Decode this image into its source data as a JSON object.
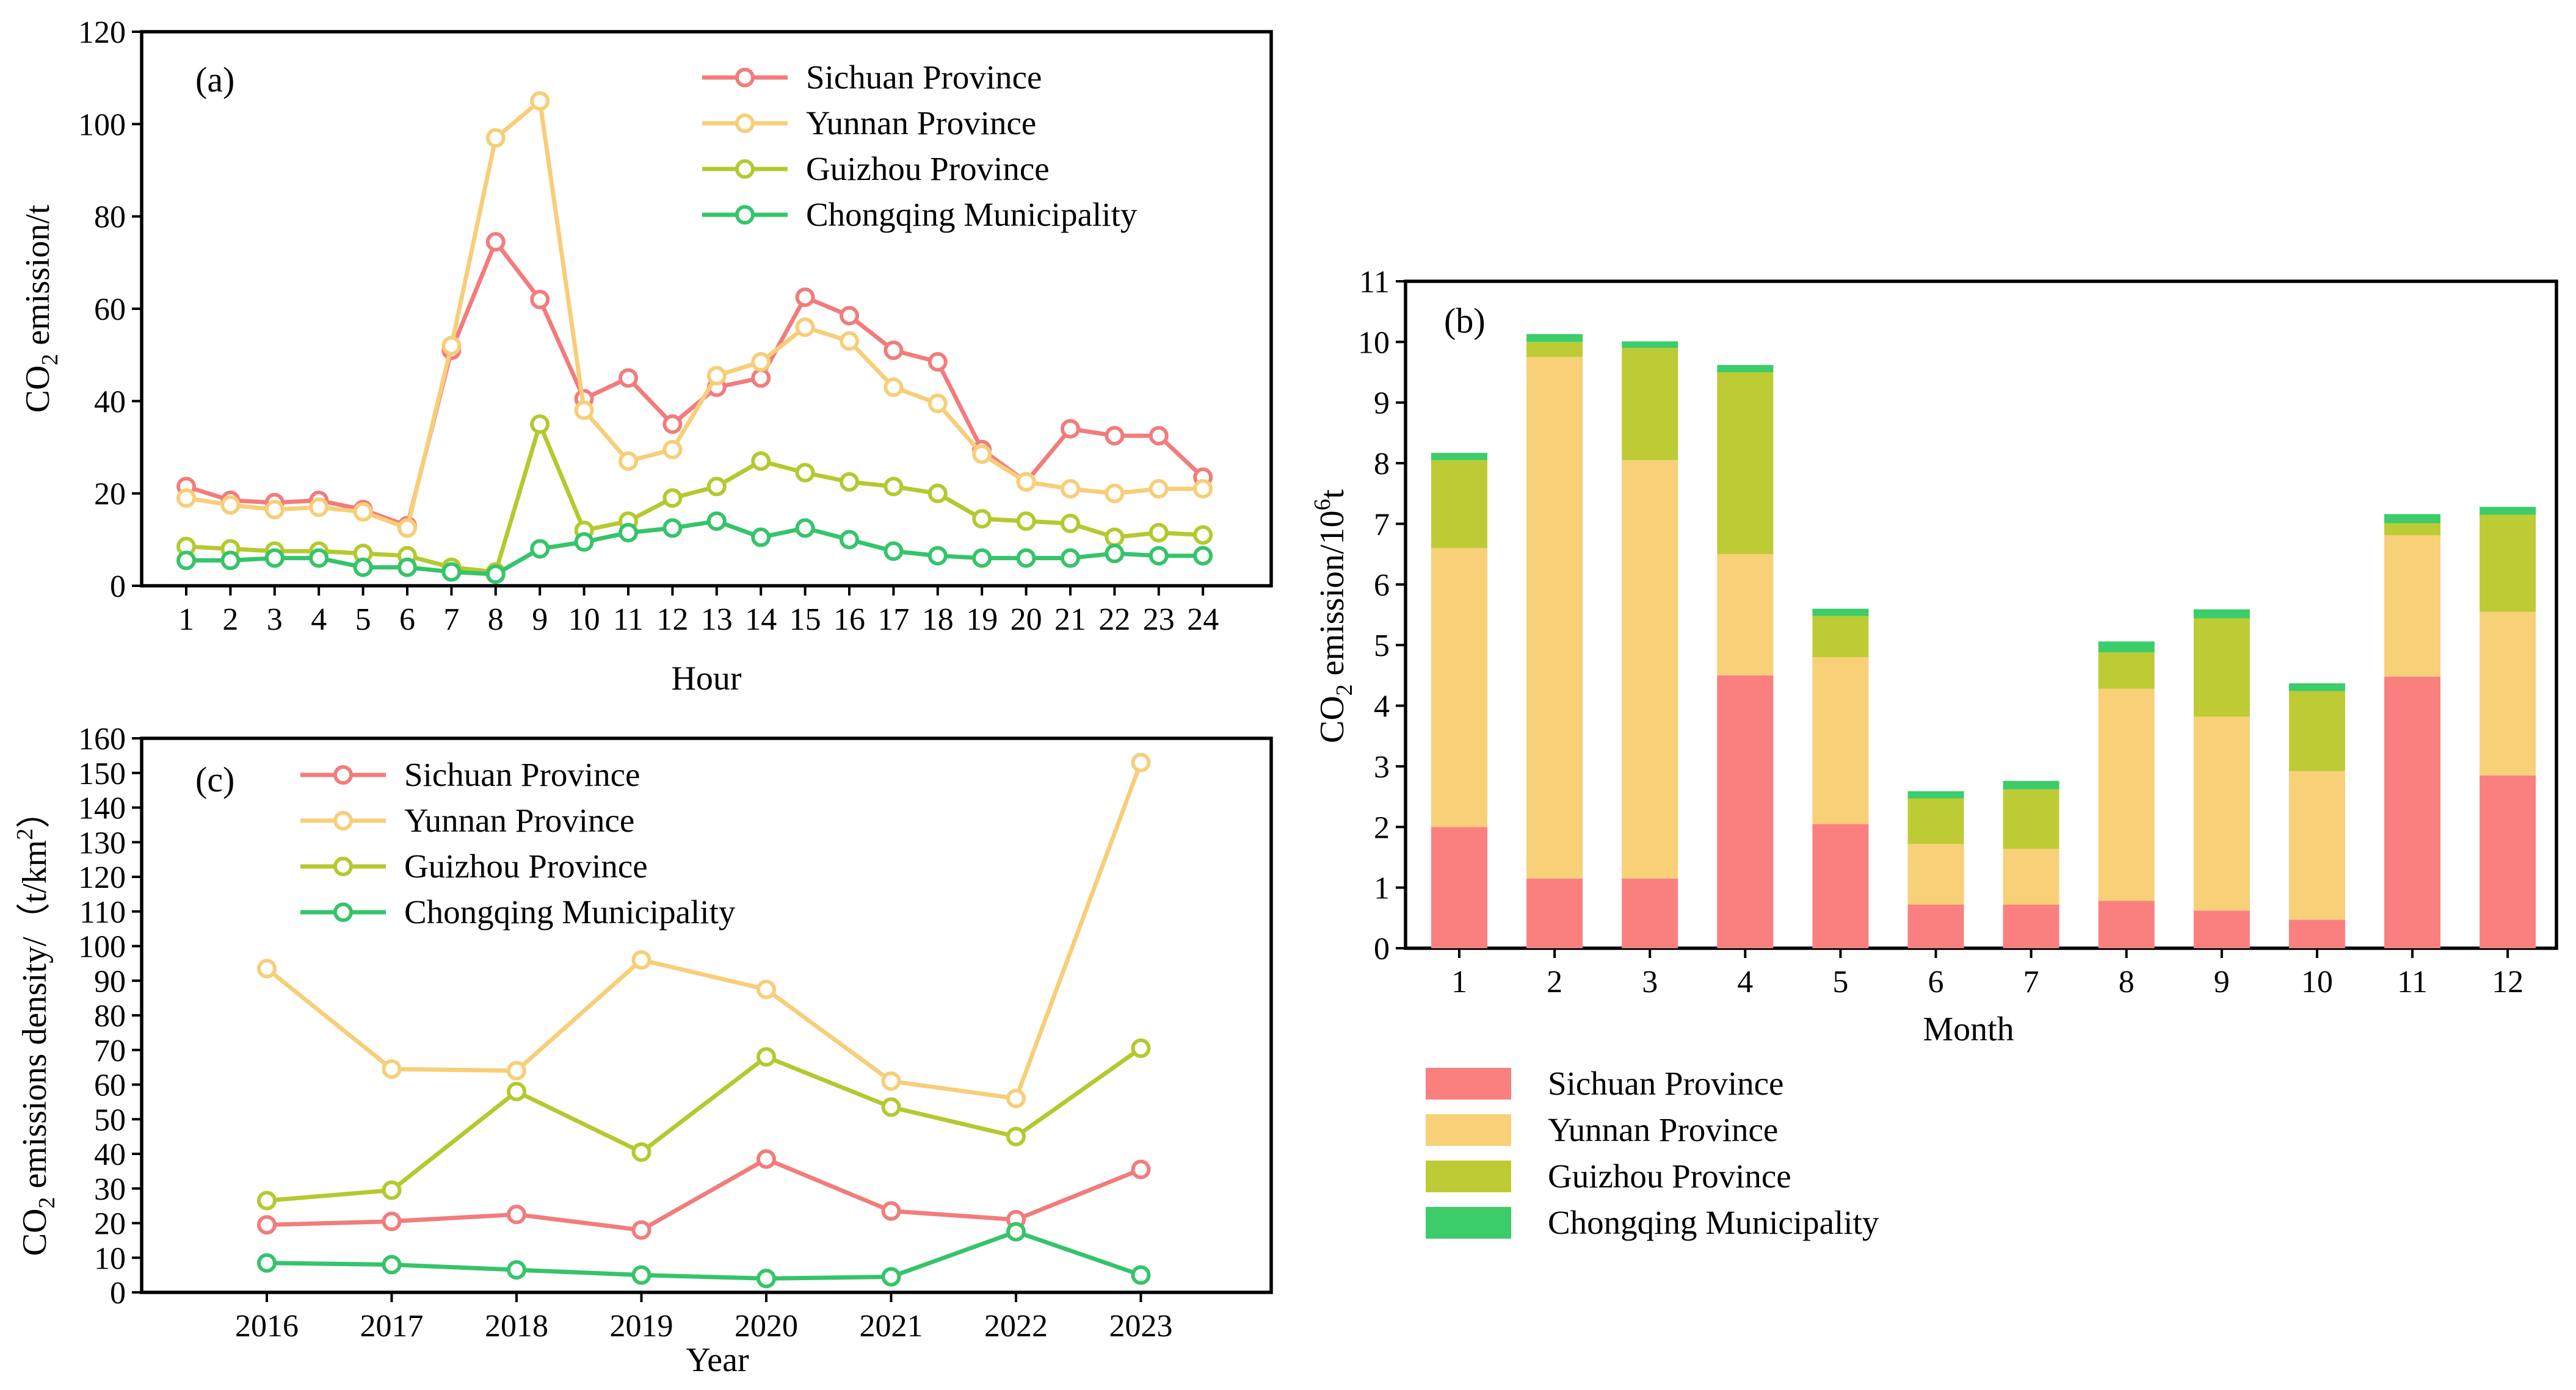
{
  "colors": {
    "sichuan_line": "#f27c7c",
    "yunnan_line": "#f7ce79",
    "guizhou_line": "#b5c92f",
    "chongqing_line": "#35c46a",
    "sichuan_bar": "#fa8080",
    "yunnan_bar": "#f8d078",
    "guizhou_bar": "#bdcc35",
    "chongqing_bar": "#3dcc6a"
  },
  "chart_data": [
    {
      "id": "a",
      "type": "line",
      "tag": "(a)",
      "xlabel": "Hour",
      "ylabel_main": "CO",
      "ylabel_sub": "2",
      "ylabel_rest": " emission/t",
      "ylim": [
        0,
        120
      ],
      "yticks": [
        "0",
        "20",
        "40",
        "60",
        "80",
        "100",
        "120"
      ],
      "categories": [
        "1",
        "2",
        "3",
        "4",
        "5",
        "6",
        "7",
        "8",
        "9",
        "10",
        "11",
        "12",
        "13",
        "14",
        "15",
        "16",
        "17",
        "18",
        "19",
        "20",
        "21",
        "22",
        "23",
        "24"
      ],
      "series": [
        {
          "name": "Sichuan Province",
          "color_key": "sichuan_line",
          "values": [
            21.5,
            18.5,
            18,
            18.5,
            16.5,
            13,
            51,
            74.5,
            62,
            40.5,
            45,
            35,
            43,
            45,
            62.5,
            58.5,
            51,
            48.5,
            29.5,
            22.5,
            34,
            32.5,
            32.5,
            23.5
          ]
        },
        {
          "name": "Yunnan Province",
          "color_key": "yunnan_line",
          "values": [
            19,
            17.5,
            16.5,
            17,
            16,
            12.5,
            52,
            97,
            105,
            38,
            27,
            29.5,
            45.5,
            48.5,
            56,
            53,
            43,
            39.5,
            28.5,
            22.5,
            21,
            20,
            21,
            21
          ]
        },
        {
          "name": "Guizhou Province",
          "color_key": "guizhou_line",
          "values": [
            8.5,
            8,
            7.5,
            7.5,
            7,
            6.5,
            4,
            3,
            35,
            12,
            14,
            19,
            21.5,
            27,
            24.5,
            22.5,
            21.5,
            20,
            14.5,
            14,
            13.5,
            10.5,
            11.5,
            11
          ]
        },
        {
          "name": "Chongqing Municipality",
          "color_key": "chongqing_line",
          "values": [
            5.5,
            5.5,
            6,
            6,
            4,
            4,
            3,
            2.5,
            8,
            9.5,
            11.5,
            12.5,
            14,
            10.5,
            12.5,
            10,
            7.5,
            6.5,
            6,
            6,
            6,
            7,
            6.5,
            6.5
          ]
        }
      ]
    },
    {
      "id": "b",
      "type": "stacked-bar",
      "tag": "(b)",
      "xlabel": "Month",
      "ylabel_main": "CO",
      "ylabel_sub": "2",
      "ylabel_rest": " emission/10",
      "ylabel_sup": "6",
      "ylabel_end": "t",
      "ylim": [
        0,
        11
      ],
      "yticks": [
        "0",
        "1",
        "2",
        "3",
        "4",
        "5",
        "6",
        "7",
        "8",
        "9",
        "10",
        "11"
      ],
      "categories": [
        "1",
        "2",
        "3",
        "4",
        "5",
        "6",
        "7",
        "8",
        "9",
        "10",
        "11",
        "12"
      ],
      "series": [
        {
          "name": "Sichuan Province",
          "color_key": "sichuan_bar",
          "values": [
            2.0,
            1.15,
            1.15,
            4.5,
            2.05,
            0.72,
            0.72,
            0.78,
            0.62,
            0.47,
            4.48,
            2.85
          ]
        },
        {
          "name": "Yunnan Province",
          "color_key": "yunnan_bar",
          "values": [
            4.6,
            8.6,
            6.9,
            2.0,
            2.75,
            1.0,
            0.92,
            3.5,
            3.2,
            2.45,
            2.33,
            2.7
          ]
        },
        {
          "name": "Guizhou Province",
          "color_key": "guizhou_bar",
          "values": [
            1.45,
            0.25,
            1.85,
            3.0,
            0.68,
            0.75,
            0.98,
            0.6,
            1.62,
            1.32,
            0.2,
            1.6
          ]
        },
        {
          "name": "Chongqing Municipality",
          "color_key": "chongqing_bar",
          "values": [
            0.12,
            0.13,
            0.11,
            0.12,
            0.12,
            0.12,
            0.14,
            0.18,
            0.15,
            0.13,
            0.15,
            0.13
          ]
        }
      ]
    },
    {
      "id": "c",
      "type": "line",
      "tag": "(c)",
      "xlabel": "Year",
      "ylabel_main": "CO",
      "ylabel_sub": "2",
      "ylabel_rest": " emissions density/（t/km",
      "ylabel_sup": "2",
      "ylabel_end": "）",
      "ylim": [
        0,
        160
      ],
      "yticks": [
        "0",
        "10",
        "20",
        "30",
        "40",
        "50",
        "60",
        "70",
        "80",
        "90",
        "100",
        "110",
        "120",
        "130",
        "140",
        "150",
        "160"
      ],
      "categories": [
        "2016",
        "2017",
        "2018",
        "2019",
        "2020",
        "2021",
        "2022",
        "2023"
      ],
      "series": [
        {
          "name": "Sichuan Province",
          "color_key": "sichuan_line",
          "values": [
            19.5,
            20.5,
            22.5,
            18,
            38.5,
            23.5,
            21,
            35.5
          ]
        },
        {
          "name": "Yunnan Province",
          "color_key": "yunnan_line",
          "values": [
            93.5,
            64.5,
            64,
            96,
            87.5,
            61,
            56,
            153
          ]
        },
        {
          "name": "Guizhou Province",
          "color_key": "guizhou_line",
          "values": [
            26.5,
            29.5,
            58,
            40.5,
            68,
            53.5,
            45,
            70.5
          ]
        },
        {
          "name": "Chongqing Municipality",
          "color_key": "chongqing_line",
          "values": [
            8.5,
            8,
            6.5,
            5,
            4,
            4.5,
            17.5,
            5
          ]
        }
      ]
    }
  ]
}
